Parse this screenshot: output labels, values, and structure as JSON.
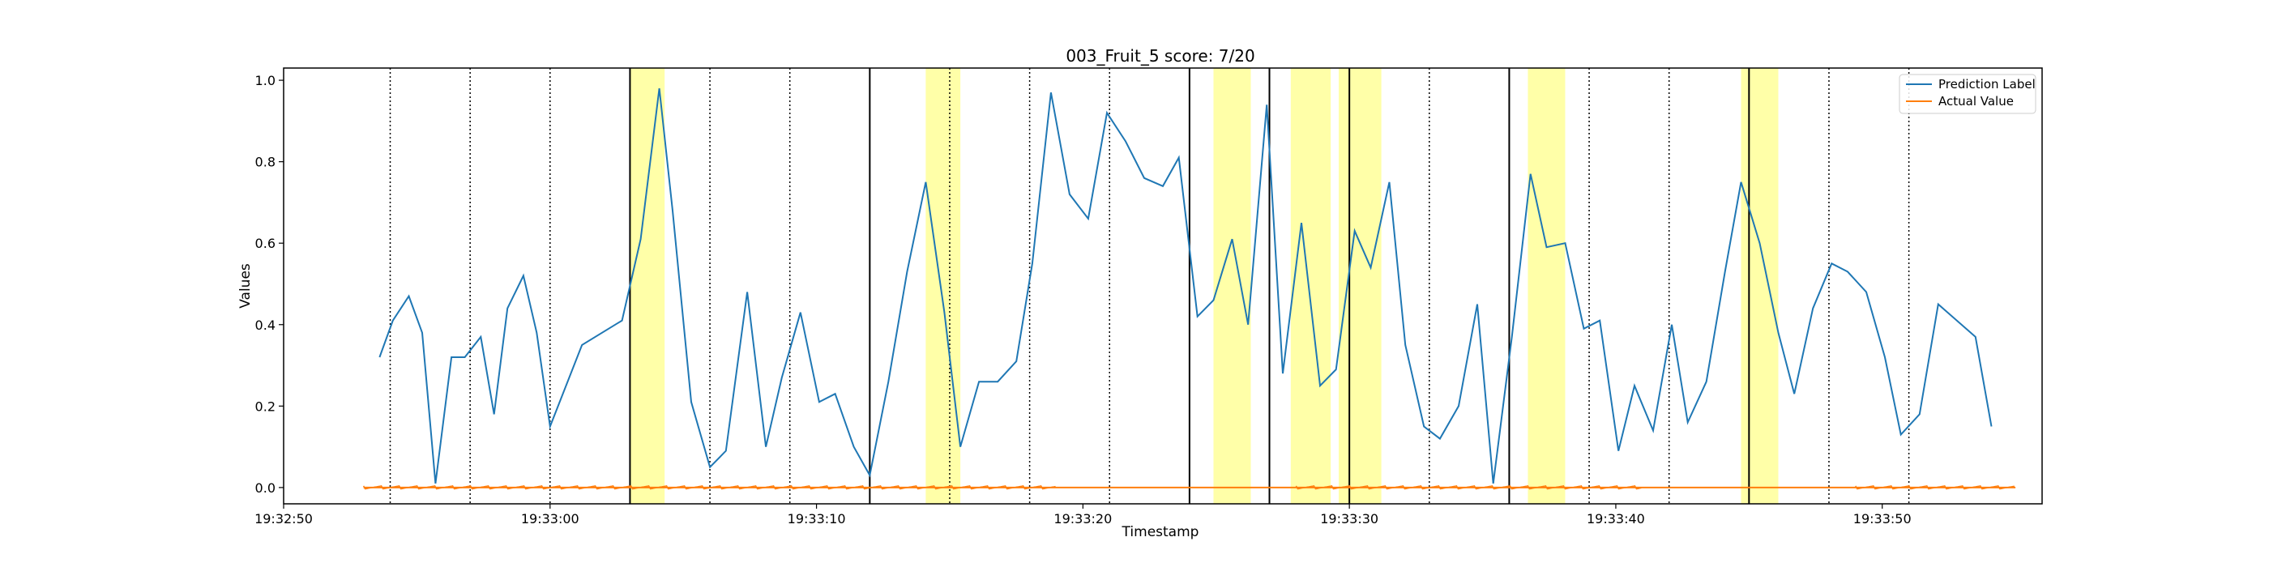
{
  "chart_data": {
    "type": "line",
    "title": "003_Fruit_5 score: 7/20",
    "xlabel": "Timestamp",
    "ylabel": "Values",
    "xlim": [
      "19:32:50",
      "19:33:56"
    ],
    "ylim": [
      -0.04,
      1.03
    ],
    "x_ticks": [
      "19:32:50",
      "19:33:00",
      "19:33:10",
      "19:33:20",
      "19:33:30",
      "19:33:40",
      "19:33:50"
    ],
    "y_ticks": [
      0.0,
      0.2,
      0.4,
      0.6,
      0.8,
      1.0
    ],
    "grid": false,
    "legend": {
      "position": "top-right"
    },
    "colors": {
      "prediction": "#1f77b4",
      "actual": "#ff7f0e",
      "highlight": "#ffff99",
      "solid_line": "#000000",
      "dotted_line": "#000000"
    },
    "series": [
      {
        "name": "Prediction Label",
        "points": [
          [
            "19:32:53.6",
            0.32
          ],
          [
            "19:32:54.1",
            0.41
          ],
          [
            "19:32:54.7",
            0.47
          ],
          [
            "19:32:55.2",
            0.38
          ],
          [
            "19:32:55.7",
            0.01
          ],
          [
            "19:32:56.3",
            0.32
          ],
          [
            "19:32:56.8",
            0.32
          ],
          [
            "19:32:57.4",
            0.37
          ],
          [
            "19:32:57.9",
            0.18
          ],
          [
            "19:32:58.4",
            0.44
          ],
          [
            "19:32:59.0",
            0.52
          ],
          [
            "19:32:59.5",
            0.38
          ],
          [
            "19:33:00.0",
            0.15
          ],
          [
            "19:33:01.2",
            0.35
          ],
          [
            "19:33:02.7",
            0.41
          ],
          [
            "19:33:03.4",
            0.61
          ],
          [
            "19:33:04.1",
            0.98
          ],
          [
            "19:33:04.6",
            0.68
          ],
          [
            "19:33:05.3",
            0.21
          ],
          [
            "19:33:06.0",
            0.05
          ],
          [
            "19:33:06.6",
            0.09
          ],
          [
            "19:33:07.4",
            0.48
          ],
          [
            "19:33:08.1",
            0.1
          ],
          [
            "19:33:08.7",
            0.27
          ],
          [
            "19:33:09.4",
            0.43
          ],
          [
            "19:33:10.1",
            0.21
          ],
          [
            "19:33:10.7",
            0.23
          ],
          [
            "19:33:11.4",
            0.1
          ],
          [
            "19:33:12.0",
            0.03
          ],
          [
            "19:33:12.7",
            0.26
          ],
          [
            "19:33:13.4",
            0.53
          ],
          [
            "19:33:14.1",
            0.75
          ],
          [
            "19:33:14.8",
            0.43
          ],
          [
            "19:33:15.4",
            0.1
          ],
          [
            "19:33:16.1",
            0.26
          ],
          [
            "19:33:16.8",
            0.26
          ],
          [
            "19:33:17.5",
            0.31
          ],
          [
            "19:33:18.1",
            0.55
          ],
          [
            "19:33:18.8",
            0.97
          ],
          [
            "19:33:19.5",
            0.72
          ],
          [
            "19:33:20.2",
            0.66
          ],
          [
            "19:33:20.9",
            0.92
          ],
          [
            "19:33:21.6",
            0.85
          ],
          [
            "19:33:22.3",
            0.76
          ],
          [
            "19:33:23.0",
            0.74
          ],
          [
            "19:33:23.6",
            0.81
          ],
          [
            "19:33:24.3",
            0.42
          ],
          [
            "19:33:24.9",
            0.46
          ],
          [
            "19:33:25.6",
            0.61
          ],
          [
            "19:33:26.2",
            0.4
          ],
          [
            "19:33:26.9",
            0.94
          ],
          [
            "19:33:27.5",
            0.28
          ],
          [
            "19:33:28.2",
            0.65
          ],
          [
            "19:33:28.9",
            0.25
          ],
          [
            "19:33:29.5",
            0.29
          ],
          [
            "19:33:30.2",
            0.63
          ],
          [
            "19:33:30.8",
            0.54
          ],
          [
            "19:33:31.5",
            0.75
          ],
          [
            "19:33:32.1",
            0.35
          ],
          [
            "19:33:32.8",
            0.15
          ],
          [
            "19:33:33.4",
            0.12
          ],
          [
            "19:33:34.1",
            0.2
          ],
          [
            "19:33:34.8",
            0.45
          ],
          [
            "19:33:35.4",
            0.01
          ],
          [
            "19:33:36.1",
            0.37
          ],
          [
            "19:33:36.8",
            0.77
          ],
          [
            "19:33:37.4",
            0.59
          ],
          [
            "19:33:38.1",
            0.6
          ],
          [
            "19:33:38.8",
            0.39
          ],
          [
            "19:33:39.4",
            0.41
          ],
          [
            "19:33:40.1",
            0.09
          ],
          [
            "19:33:40.7",
            0.25
          ],
          [
            "19:33:41.4",
            0.14
          ],
          [
            "19:33:42.1",
            0.4
          ],
          [
            "19:33:42.7",
            0.16
          ],
          [
            "19:33:43.4",
            0.26
          ],
          [
            "19:33:44.1",
            0.53
          ],
          [
            "19:33:44.7",
            0.75
          ],
          [
            "19:33:45.4",
            0.6
          ],
          [
            "19:33:46.1",
            0.38
          ],
          [
            "19:33:46.7",
            0.23
          ],
          [
            "19:33:47.4",
            0.44
          ],
          [
            "19:33:48.1",
            0.55
          ],
          [
            "19:33:48.7",
            0.53
          ],
          [
            "19:33:49.4",
            0.48
          ],
          [
            "19:33:50.1",
            0.32
          ],
          [
            "19:33:50.7",
            0.13
          ],
          [
            "19:33:51.4",
            0.18
          ],
          [
            "19:33:52.1",
            0.45
          ],
          [
            "19:33:53.5",
            0.37
          ],
          [
            "19:33:54.1",
            0.15
          ]
        ]
      },
      {
        "name": "Actual Value",
        "start": "19:32:53.0",
        "end": "19:33:55.0",
        "value": 0.0,
        "noise_segments": [
          [
            "19:32:53.0",
            "19:33:19.0"
          ],
          [
            "19:33:28.0",
            "19:33:41.0"
          ],
          [
            "19:33:49.0",
            "19:33:55.0"
          ]
        ]
      }
    ],
    "highlight_regions": [
      [
        "19:33:03.0",
        "19:33:04.3"
      ],
      [
        "19:33:14.1",
        "19:33:15.4"
      ],
      [
        "19:33:24.9",
        "19:33:26.3"
      ],
      [
        "19:33:27.8",
        "19:33:29.3"
      ],
      [
        "19:33:29.6",
        "19:33:31.2"
      ],
      [
        "19:33:36.7",
        "19:33:38.1"
      ],
      [
        "19:33:44.7",
        "19:33:46.1"
      ]
    ],
    "solid_vlines": [
      "19:33:03.0",
      "19:33:12.0",
      "19:33:24.0",
      "19:33:27.0",
      "19:33:30.0",
      "19:33:36.0",
      "19:33:45.0"
    ],
    "dotted_vlines": [
      "19:32:54.0",
      "19:32:57.0",
      "19:33:00.0",
      "19:33:06.0",
      "19:33:09.0",
      "19:33:15.0",
      "19:33:18.0",
      "19:33:21.0",
      "19:33:33.0",
      "19:33:39.0",
      "19:33:42.0",
      "19:33:48.0",
      "19:33:51.0"
    ]
  }
}
